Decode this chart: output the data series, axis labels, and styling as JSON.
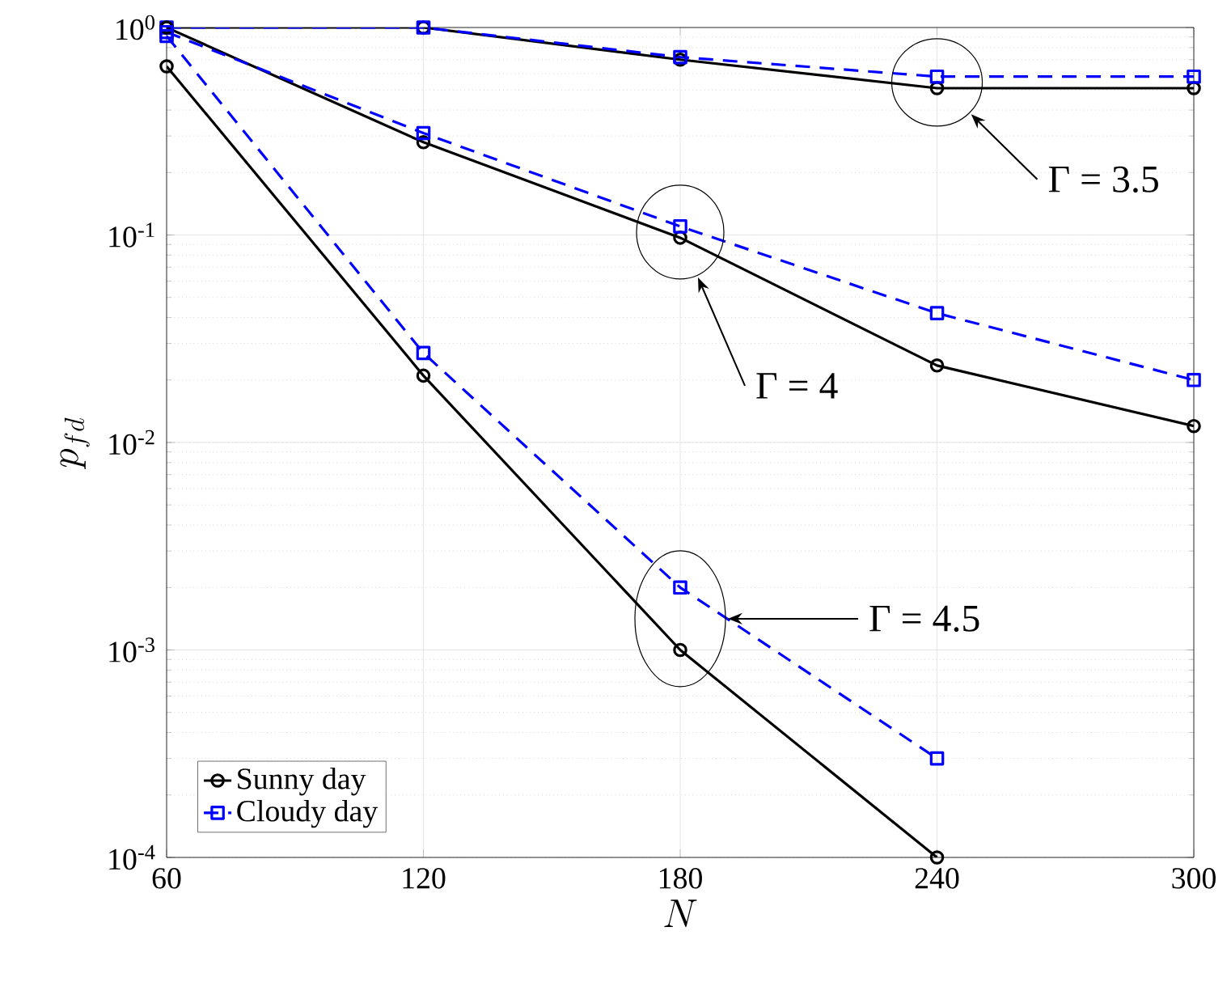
{
  "chart_data": {
    "type": "line",
    "xlabel": "N",
    "ylabel": "p_{fd}",
    "x": [
      60,
      120,
      180,
      240,
      300
    ],
    "series": [
      {
        "name": "Sunny day",
        "color": "#000000",
        "marker": "circle",
        "line_style": "solid",
        "values": [
          1.0,
          1.0,
          0.7,
          0.51,
          0.51
        ]
      },
      {
        "name": "Cloudy day",
        "color": "#0000ff",
        "marker": "square",
        "line_style": "dashed",
        "values": [
          1.0,
          1.0,
          0.72,
          0.58,
          0.58
        ]
      },
      {
        "color": "#000000",
        "marker": "circle",
        "line_style": "solid",
        "values": [
          1.0,
          0.28,
          0.097,
          0.0235,
          0.012
        ]
      },
      {
        "color": "#0000ff",
        "marker": "square",
        "line_style": "dashed",
        "values": [
          0.95,
          0.31,
          0.11,
          0.042,
          0.02
        ]
      },
      {
        "color": "#000000",
        "marker": "circle",
        "line_style": "solid",
        "values": [
          0.65,
          0.021,
          0.001,
          0.0001,
          null
        ]
      },
      {
        "color": "#0000ff",
        "marker": "square",
        "line_style": "dashed",
        "values": [
          0.91,
          0.027,
          0.002,
          0.0003,
          null
        ]
      }
    ],
    "log": "y",
    "xlim": [
      60,
      300
    ],
    "xticks": [
      60,
      120,
      180,
      240,
      300
    ],
    "ylim": [
      0.0001,
      1
    ],
    "yticks": [
      {
        "value": 0.0001,
        "label": "10$^{-4}$"
      },
      {
        "value": 0.001,
        "label": "10$^{-3}$"
      },
      {
        "value": 0.01,
        "label": "10$^{-2}$"
      },
      {
        "value": 0.1,
        "label": "10$^{-1}$"
      },
      {
        "value": 1,
        "label": "10$^{0}$"
      }
    ],
    "grid": true,
    "legend": "bottom left",
    "annotations": [
      "Γ = 3.5",
      "Γ = 4",
      "Γ = 4.5"
    ]
  }
}
